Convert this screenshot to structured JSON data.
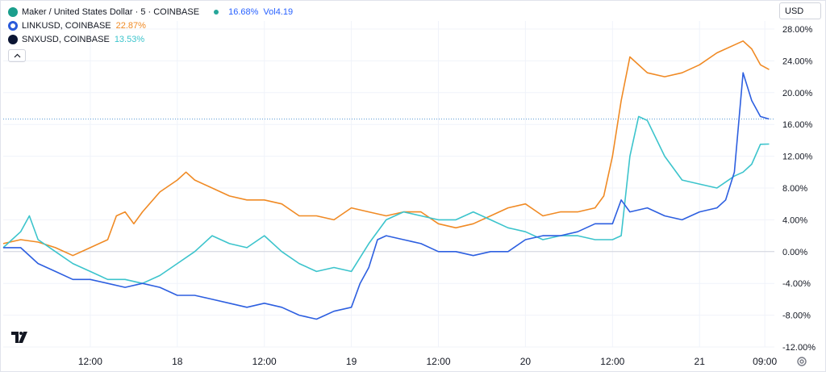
{
  "legend": {
    "main_symbol": "Maker / United States Dollar · 5 · COINBASE",
    "main_change": "16.68%",
    "main_vol_label": "Vol",
    "main_vol_value": "4.19",
    "series": [
      {
        "label": "LINKUSD, COINBASE",
        "value": "22.87%",
        "color": "#f08a24"
      },
      {
        "label": "SNXUSD, COINBASE",
        "value": "13.53%",
        "color": "#3cc4cc"
      }
    ],
    "collapse_icon": "chevron-up-icon"
  },
  "currency_selector": "USD",
  "colors": {
    "mkr": "#2d5fe0",
    "link": "#f08a24",
    "snx": "#3cc4cc",
    "grid": "#f0f3fa",
    "zero_line": "#d1d4dc"
  },
  "chart_data": {
    "type": "line",
    "title": "Maker / United States Dollar · 5 · COINBASE",
    "y_unit": "percent change",
    "ylim": [
      -12,
      28
    ],
    "y_ticks": [
      "28.00%",
      "24.00%",
      "20.00%",
      "16.00%",
      "12.00%",
      "8.00%",
      "4.00%",
      "0.00%",
      "-4.00%",
      "-8.00%",
      "-12.00%"
    ],
    "x_ticks": [
      "12:00",
      "18",
      "12:00",
      "19",
      "12:00",
      "20",
      "12:00",
      "21",
      "09:00"
    ],
    "x_tick_pos": [
      0.5,
      1.0,
      1.5,
      2.0,
      2.5,
      3.0,
      3.5,
      4.0,
      4.375
    ],
    "xlim": [
      0.0,
      4.43
    ],
    "last_value_line": 16.68,
    "series": [
      {
        "name": "LINKUSD, COINBASE",
        "color": "#f08a24",
        "x": [
          0.0,
          0.1,
          0.2,
          0.3,
          0.4,
          0.5,
          0.6,
          0.65,
          0.7,
          0.75,
          0.8,
          0.9,
          1.0,
          1.05,
          1.1,
          1.2,
          1.3,
          1.4,
          1.5,
          1.6,
          1.7,
          1.8,
          1.9,
          2.0,
          2.1,
          2.2,
          2.3,
          2.4,
          2.5,
          2.6,
          2.7,
          2.8,
          2.9,
          3.0,
          3.1,
          3.2,
          3.3,
          3.4,
          3.45,
          3.5,
          3.55,
          3.6,
          3.7,
          3.8,
          3.9,
          4.0,
          4.1,
          4.2,
          4.25,
          4.3,
          4.35,
          4.4
        ],
        "y": [
          1.0,
          1.5,
          1.2,
          0.5,
          -0.5,
          0.5,
          1.5,
          4.5,
          5.0,
          3.5,
          5.0,
          7.5,
          9.0,
          10.0,
          9.0,
          8.0,
          7.0,
          6.5,
          6.5,
          6.0,
          4.5,
          4.5,
          4.0,
          5.5,
          5.0,
          4.5,
          5.0,
          5.0,
          3.5,
          3.0,
          3.5,
          4.5,
          5.5,
          6.0,
          4.5,
          5.0,
          5.0,
          5.5,
          7.0,
          12.0,
          19.0,
          24.5,
          22.5,
          22.0,
          22.5,
          23.5,
          25.0,
          26.0,
          26.5,
          25.5,
          23.5,
          22.9
        ]
      },
      {
        "name": "SNXUSD, COINBASE",
        "color": "#3cc4cc",
        "x": [
          0.0,
          0.1,
          0.15,
          0.2,
          0.3,
          0.4,
          0.5,
          0.6,
          0.7,
          0.8,
          0.9,
          1.0,
          1.1,
          1.2,
          1.3,
          1.4,
          1.5,
          1.6,
          1.7,
          1.8,
          1.9,
          2.0,
          2.1,
          2.2,
          2.3,
          2.4,
          2.5,
          2.6,
          2.7,
          2.8,
          2.9,
          3.0,
          3.1,
          3.2,
          3.3,
          3.4,
          3.5,
          3.55,
          3.6,
          3.65,
          3.7,
          3.8,
          3.9,
          4.0,
          4.1,
          4.2,
          4.25,
          4.3,
          4.35,
          4.4
        ],
        "y": [
          0.5,
          2.5,
          4.5,
          1.5,
          0.0,
          -1.5,
          -2.5,
          -3.5,
          -3.5,
          -4.0,
          -3.0,
          -1.5,
          0.0,
          2.0,
          1.0,
          0.5,
          2.0,
          0.0,
          -1.5,
          -2.5,
          -2.0,
          -2.5,
          1.0,
          4.0,
          5.0,
          4.5,
          4.0,
          4.0,
          5.0,
          4.0,
          3.0,
          2.5,
          1.5,
          2.0,
          2.0,
          1.5,
          1.5,
          2.0,
          12.0,
          17.0,
          16.5,
          12.0,
          9.0,
          8.5,
          8.0,
          9.5,
          10.0,
          11.0,
          13.5,
          13.53
        ]
      },
      {
        "name": "Maker / United States Dollar",
        "color": "#2d5fe0",
        "x": [
          0.0,
          0.1,
          0.2,
          0.3,
          0.4,
          0.5,
          0.6,
          0.7,
          0.8,
          0.9,
          1.0,
          1.1,
          1.2,
          1.3,
          1.4,
          1.5,
          1.6,
          1.7,
          1.8,
          1.85,
          1.9,
          2.0,
          2.05,
          2.1,
          2.15,
          2.2,
          2.3,
          2.4,
          2.5,
          2.6,
          2.7,
          2.8,
          2.9,
          3.0,
          3.1,
          3.2,
          3.3,
          3.4,
          3.5,
          3.55,
          3.6,
          3.7,
          3.8,
          3.9,
          4.0,
          4.1,
          4.15,
          4.2,
          4.25,
          4.3,
          4.35,
          4.4
        ],
        "y": [
          0.5,
          0.5,
          -1.5,
          -2.5,
          -3.5,
          -3.5,
          -4.0,
          -4.5,
          -4.0,
          -4.5,
          -5.5,
          -5.5,
          -6.0,
          -6.5,
          -7.0,
          -6.5,
          -7.0,
          -8.0,
          -8.5,
          -8.0,
          -7.5,
          -7.0,
          -4.0,
          -2.0,
          1.5,
          2.0,
          1.5,
          1.0,
          0.0,
          0.0,
          -0.5,
          0.0,
          0.0,
          1.5,
          2.0,
          2.0,
          2.5,
          3.5,
          3.5,
          6.5,
          5.0,
          5.5,
          4.5,
          4.0,
          5.0,
          5.5,
          6.5,
          10.0,
          22.5,
          19.0,
          17.0,
          16.68
        ]
      }
    ]
  }
}
